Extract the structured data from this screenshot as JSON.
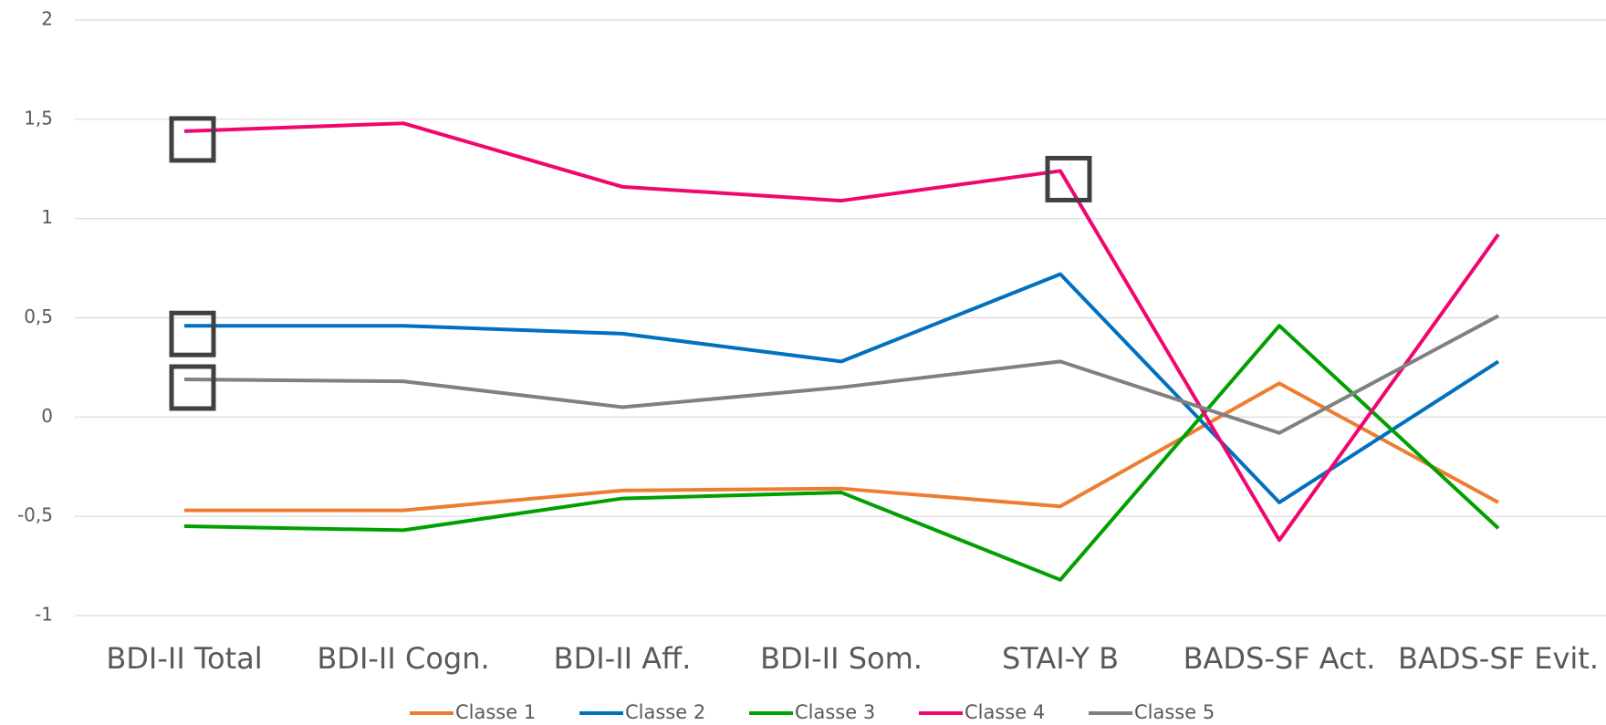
{
  "chart_data": {
    "type": "line",
    "categories": [
      "BDI-II Total",
      "BDI-II Cogn.",
      "BDI-II Aff.",
      "BDI-II Som.",
      "STAI-Y B",
      "BADS-SF Act.",
      "BADS-SF Evit."
    ],
    "series": [
      {
        "name": "Classe 1",
        "color": "#ed7d31",
        "values": [
          -0.47,
          -0.47,
          -0.37,
          -0.36,
          -0.45,
          0.17,
          -0.43
        ]
      },
      {
        "name": "Classe 2",
        "color": "#0070c0",
        "values": [
          0.46,
          0.46,
          0.42,
          0.28,
          0.72,
          -0.43,
          0.28
        ],
        "marker_indices": [
          0
        ]
      },
      {
        "name": "Classe 3",
        "color": "#00a000",
        "values": [
          -0.55,
          -0.57,
          -0.41,
          -0.38,
          -0.82,
          0.46,
          -0.56
        ]
      },
      {
        "name": "Classe 4",
        "color": "#f0066e",
        "values": [
          1.44,
          1.48,
          1.16,
          1.09,
          1.24,
          -0.62,
          0.92
        ],
        "marker_indices": [
          0,
          4
        ]
      },
      {
        "name": "Classe 5",
        "color": "#808080",
        "values": [
          0.19,
          0.18,
          0.05,
          0.15,
          0.28,
          -0.08,
          0.51
        ],
        "marker_indices": [
          0
        ]
      }
    ],
    "ylim": [
      -1,
      2
    ],
    "yticks": [
      -1,
      {
        "value": -0.5,
        "label": "-0,5"
      },
      0,
      {
        "value": 0.5,
        "label": "0,5"
      },
      1,
      {
        "value": 1.5,
        "label": "1,5"
      },
      2
    ],
    "grid": true,
    "legend": "bottom"
  }
}
